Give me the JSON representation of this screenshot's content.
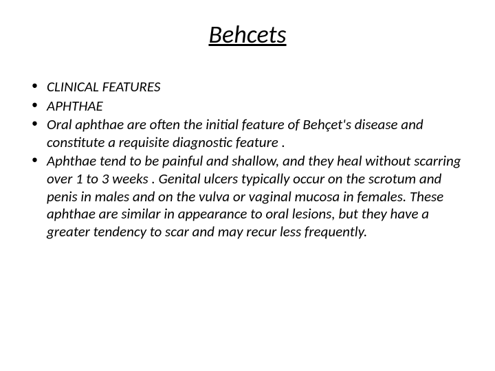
{
  "slide": {
    "title": "Behcets",
    "title_fontsize": 36,
    "title_style": "italic underline centered",
    "background_color": "#ffffff",
    "text_color": "#000000",
    "body_fontsize": 21,
    "body_style": "italic",
    "bullet_char": "•",
    "bullets": [
      "CLINICAL FEATURES",
      "APHTHAE",
      "Oral aphthae are often the initial feature of Behçet's disease and constitute a requisite diagnostic feature  .",
      " Aphthae tend to be painful and shallow, and they heal without scarring over 1 to 3 weeks . Genital ulcers typically occur on the scrotum and penis in males and on the vulva or vaginal mucosa in females. These aphthae are similar in appearance to oral lesions, but they have a greater tendency to scar and may recur less frequently."
    ]
  }
}
